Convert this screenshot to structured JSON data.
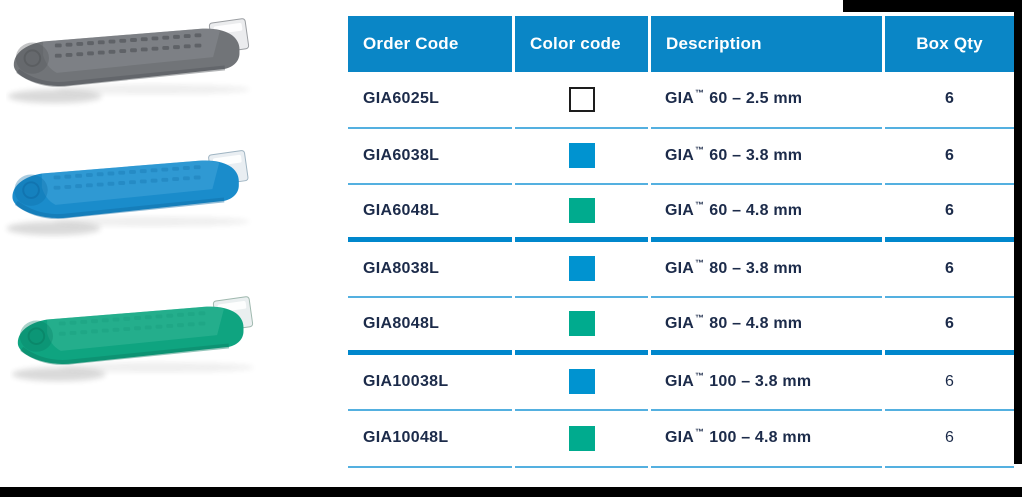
{
  "page": {
    "kind": "product-catalog-table",
    "edge_color": "#000000",
    "background": "#ffffff"
  },
  "products": [
    {
      "name": "gray-stapler-reload",
      "body": "#717478",
      "dark": "#53565a",
      "light": "#8c9094",
      "clip": "#ebecee",
      "clip_stroke": "#9a9da1",
      "slot_opacity": 0.7
    },
    {
      "name": "blue-stapler-reload",
      "body": "#1a8ccb",
      "dark": "#0f6da6",
      "light": "#4aa8de",
      "clip": "#e9eef2",
      "clip_stroke": "#9fb4c2",
      "slot_opacity": 0.3
    },
    {
      "name": "green-stapler-reload",
      "body": "#0fa480",
      "dark": "#0a7f63",
      "light": "#3dbb9b",
      "clip": "#eaeff0",
      "clip_stroke": "#9fb8ae",
      "slot_opacity": 0.15
    }
  ],
  "table": {
    "header": {
      "bg": "#0a86c6",
      "columns": [
        {
          "label": "Order Code",
          "align": "left"
        },
        {
          "label": "Color code",
          "align": "left"
        },
        {
          "label": "Description",
          "align": "left"
        },
        {
          "label": "Box Qty",
          "align": "center"
        }
      ]
    },
    "colors": {
      "text": "#1c2b4a",
      "thin_rule": "#54b0e0",
      "thick_rule": "#0087cc",
      "swatch_blue": "#0093d0",
      "swatch_green": "#00ab8e",
      "swatch_white": "#ffffff"
    },
    "rows": [
      {
        "order_code": "GIA6025L",
        "color_code": "white",
        "brand": "GIA",
        "tm": "™",
        "size": "60 – 2.5 mm",
        "box_qty": "6",
        "qty_bold": true,
        "sep": "thin"
      },
      {
        "order_code": "GIA6038L",
        "color_code": "blue",
        "brand": "GIA",
        "tm": "™",
        "size": "60 – 3.8 mm",
        "box_qty": "6",
        "qty_bold": true,
        "sep": "thin"
      },
      {
        "order_code": "GIA6048L",
        "color_code": "green",
        "brand": "GIA",
        "tm": "™",
        "size": "60 – 4.8 mm",
        "box_qty": "6",
        "qty_bold": true,
        "sep": "thick"
      },
      {
        "order_code": "GIA8038L",
        "color_code": "blue",
        "brand": "GIA",
        "tm": "™",
        "size": "80 – 3.8 mm",
        "box_qty": "6",
        "qty_bold": true,
        "sep": "thin"
      },
      {
        "order_code": "GIA8048L",
        "color_code": "green",
        "brand": "GIA",
        "tm": "™",
        "size": "80 – 4.8 mm",
        "box_qty": "6",
        "qty_bold": true,
        "sep": "thick"
      },
      {
        "order_code": "GIA10038L",
        "color_code": "blue",
        "brand": "GIA",
        "tm": "™",
        "size": "100 – 3.8 mm",
        "box_qty": "6",
        "qty_bold": false,
        "sep": "thin"
      },
      {
        "order_code": "GIA10048L",
        "color_code": "green",
        "brand": "GIA",
        "tm": "™",
        "size": "100 – 4.8 mm",
        "box_qty": "6",
        "qty_bold": false,
        "sep": "thin"
      }
    ]
  }
}
